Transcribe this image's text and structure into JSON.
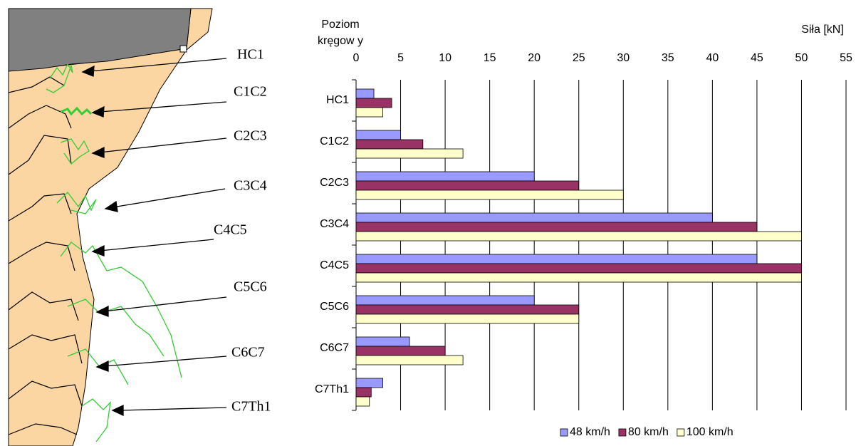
{
  "illustration": {
    "labels": [
      "HC1",
      "C1C2",
      "C2C3",
      "C3C4",
      "C4C5",
      "C5C6",
      "C6C7",
      "C7Th1"
    ]
  },
  "chart_data": {
    "type": "bar",
    "orientation": "horizontal",
    "y_label_lines": [
      "Poziom",
      "kręgow y"
    ],
    "x_label": "Siła [kN]",
    "categories": [
      "HC1",
      "C1C2",
      "C2C3",
      "C3C4",
      "C4C5",
      "C5C6",
      "C6C7",
      "C7Th1"
    ],
    "series": [
      {
        "name": "48 km/h",
        "color": "#9999ff",
        "values": [
          2,
          5,
          20,
          40,
          45,
          20,
          6,
          3
        ]
      },
      {
        "name": "80 km/h",
        "color": "#993366",
        "values": [
          4,
          7.5,
          25,
          45,
          50,
          25,
          10,
          1.7
        ]
      },
      {
        "name": "100 km/h",
        "color": "#ffffcc",
        "values": [
          3,
          12,
          30,
          50,
          50,
          25,
          12,
          1.5
        ]
      }
    ],
    "xlim": [
      0,
      55
    ],
    "xticks": [
      0,
      5,
      10,
      15,
      20,
      25,
      30,
      35,
      40,
      45,
      50,
      55
    ],
    "grid": true,
    "legend": "bottom"
  }
}
